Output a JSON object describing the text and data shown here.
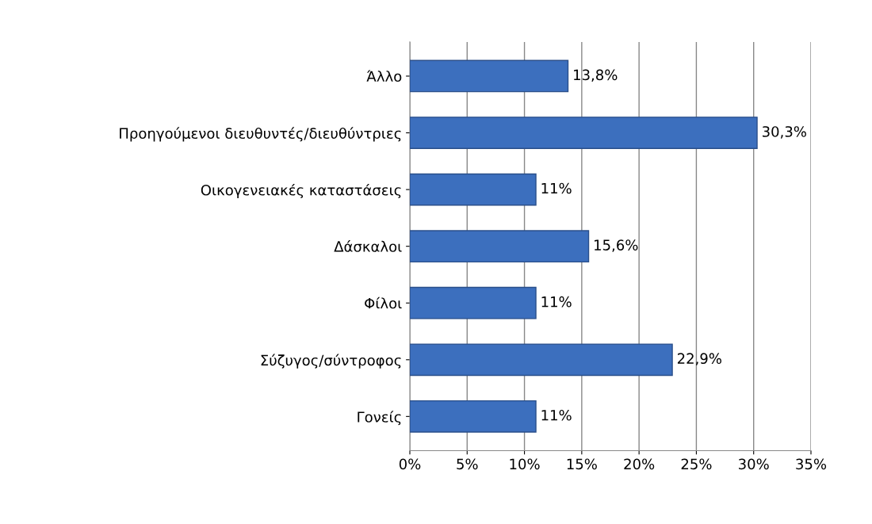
{
  "chart_data": {
    "type": "bar",
    "orientation": "horizontal",
    "categories": [
      "Άλλο",
      "Προηγούμενοι διευθυντές/διευθύντριες",
      "Οικογενειακές καταστάσεις",
      "Δάσκαλοι",
      "Φίλοι",
      "Σύζυγος/σύντροφος",
      "Γονείς"
    ],
    "values": [
      13.8,
      30.3,
      11,
      15.6,
      11,
      22.9,
      11
    ],
    "value_labels": [
      "13,8%",
      "30,3%",
      "11%",
      "15,6%",
      "11%",
      "22,9%",
      "11%"
    ],
    "color": "#3c6fbe",
    "xlim": [
      0,
      35
    ],
    "xticks": [
      {
        "value": 0,
        "label": "0%"
      },
      {
        "value": 5,
        "label": "5%"
      },
      {
        "value": 10,
        "label": "10%"
      },
      {
        "value": 15,
        "label": "15%"
      },
      {
        "value": 20,
        "label": "20%"
      },
      {
        "value": 25,
        "label": "25%"
      },
      {
        "value": 30,
        "label": "30%"
      },
      {
        "value": 35,
        "label": "35%"
      }
    ],
    "grid": "x",
    "legend": false
  }
}
